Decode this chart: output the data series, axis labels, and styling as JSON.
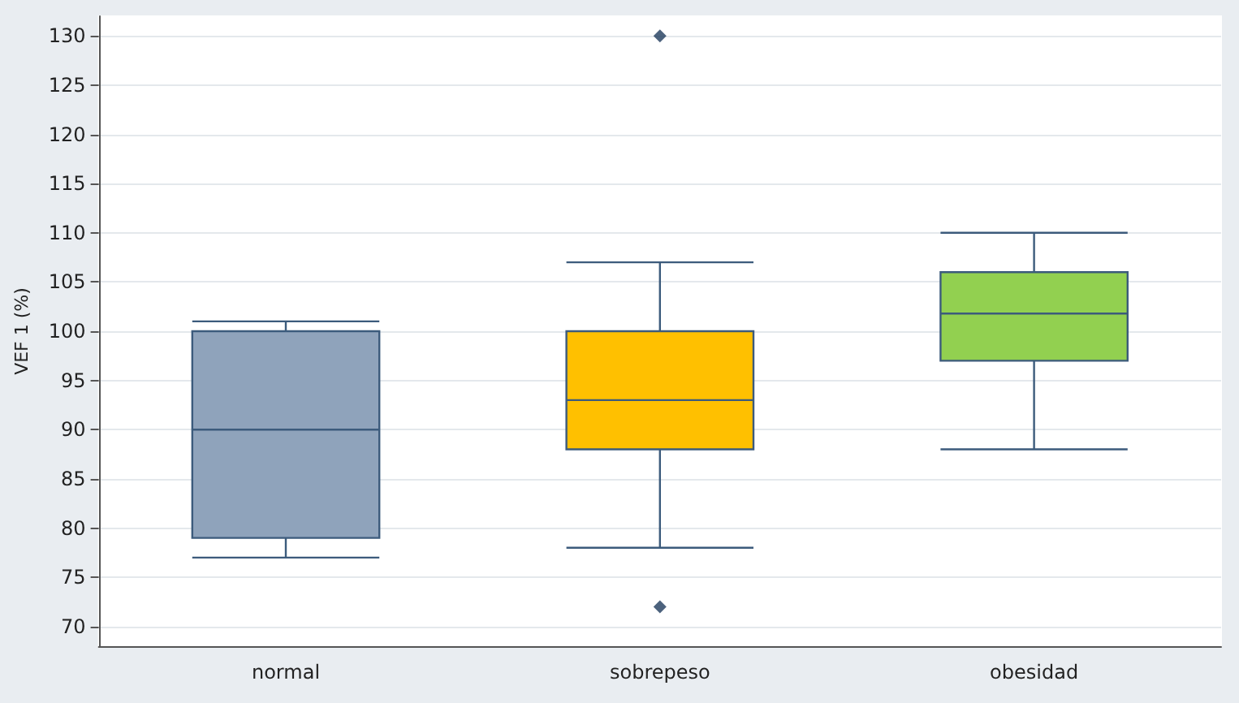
{
  "chart_data": {
    "type": "box",
    "ylabel": "VEF 1 (%)",
    "categories": [
      "normal",
      "sobrepeso",
      "obesidad"
    ],
    "boxes": [
      {
        "low": 77,
        "q1": 79,
        "median": 90,
        "q3": 100,
        "high": 101
      },
      {
        "low": 78,
        "q1": 88,
        "median": 93,
        "q3": 100,
        "high": 107,
        "outliers": [
          130,
          72
        ]
      },
      {
        "low": 88,
        "q1": 97,
        "median": 101.8,
        "q3": 106,
        "high": 110
      }
    ],
    "colors": [
      "#8fa3bb",
      "#ffc000",
      "#92d050"
    ],
    "ylim": [
      68,
      132
    ],
    "yticks": [
      70,
      75,
      80,
      85,
      90,
      95,
      100,
      105,
      110,
      115,
      120,
      125,
      130
    ],
    "grid": "y",
    "marker": "diamond"
  }
}
